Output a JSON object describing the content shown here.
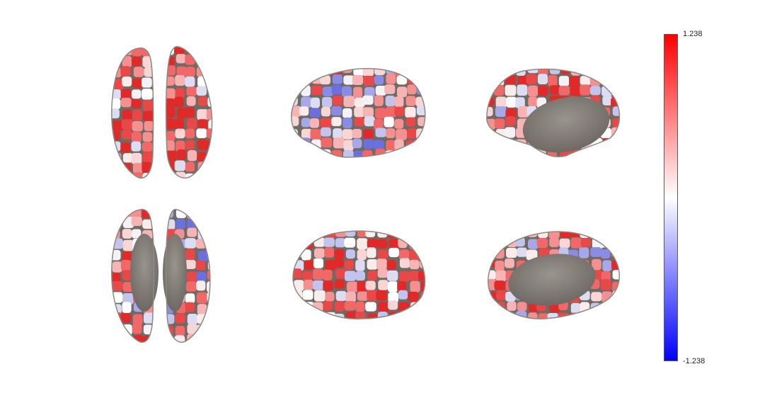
{
  "figure": {
    "panels": [
      {
        "view": "dorsal",
        "row": 0,
        "col": 0
      },
      {
        "view": "lateral-left",
        "row": 0,
        "col": 1
      },
      {
        "view": "medial-right",
        "row": 0,
        "col": 2
      },
      {
        "view": "ventral",
        "row": 1,
        "col": 0
      },
      {
        "view": "lateral-right",
        "row": 1,
        "col": 1
      },
      {
        "view": "medial-left",
        "row": 1,
        "col": 2
      }
    ],
    "medial_wall_color": "#807a74",
    "parcel_border_color": "#6f6a64"
  },
  "colorbar": {
    "max_label": "1.238",
    "min_label": "-1.238",
    "max_color": "#ff0000",
    "mid_color": "#ffffff",
    "min_color": "#0000ff",
    "orientation": "vertical"
  },
  "colors": {
    "palette": [
      "#e84848",
      "#f06868",
      "#f49090",
      "#f6b4b4",
      "#f9d6d6",
      "#fbecec",
      "#f4f2f6",
      "#dcdcf2",
      "#c2c4ee",
      "#a6a8ea",
      "#8a8ce4",
      "#6c70dc",
      "#ffffff",
      "#e02a2a"
    ]
  }
}
